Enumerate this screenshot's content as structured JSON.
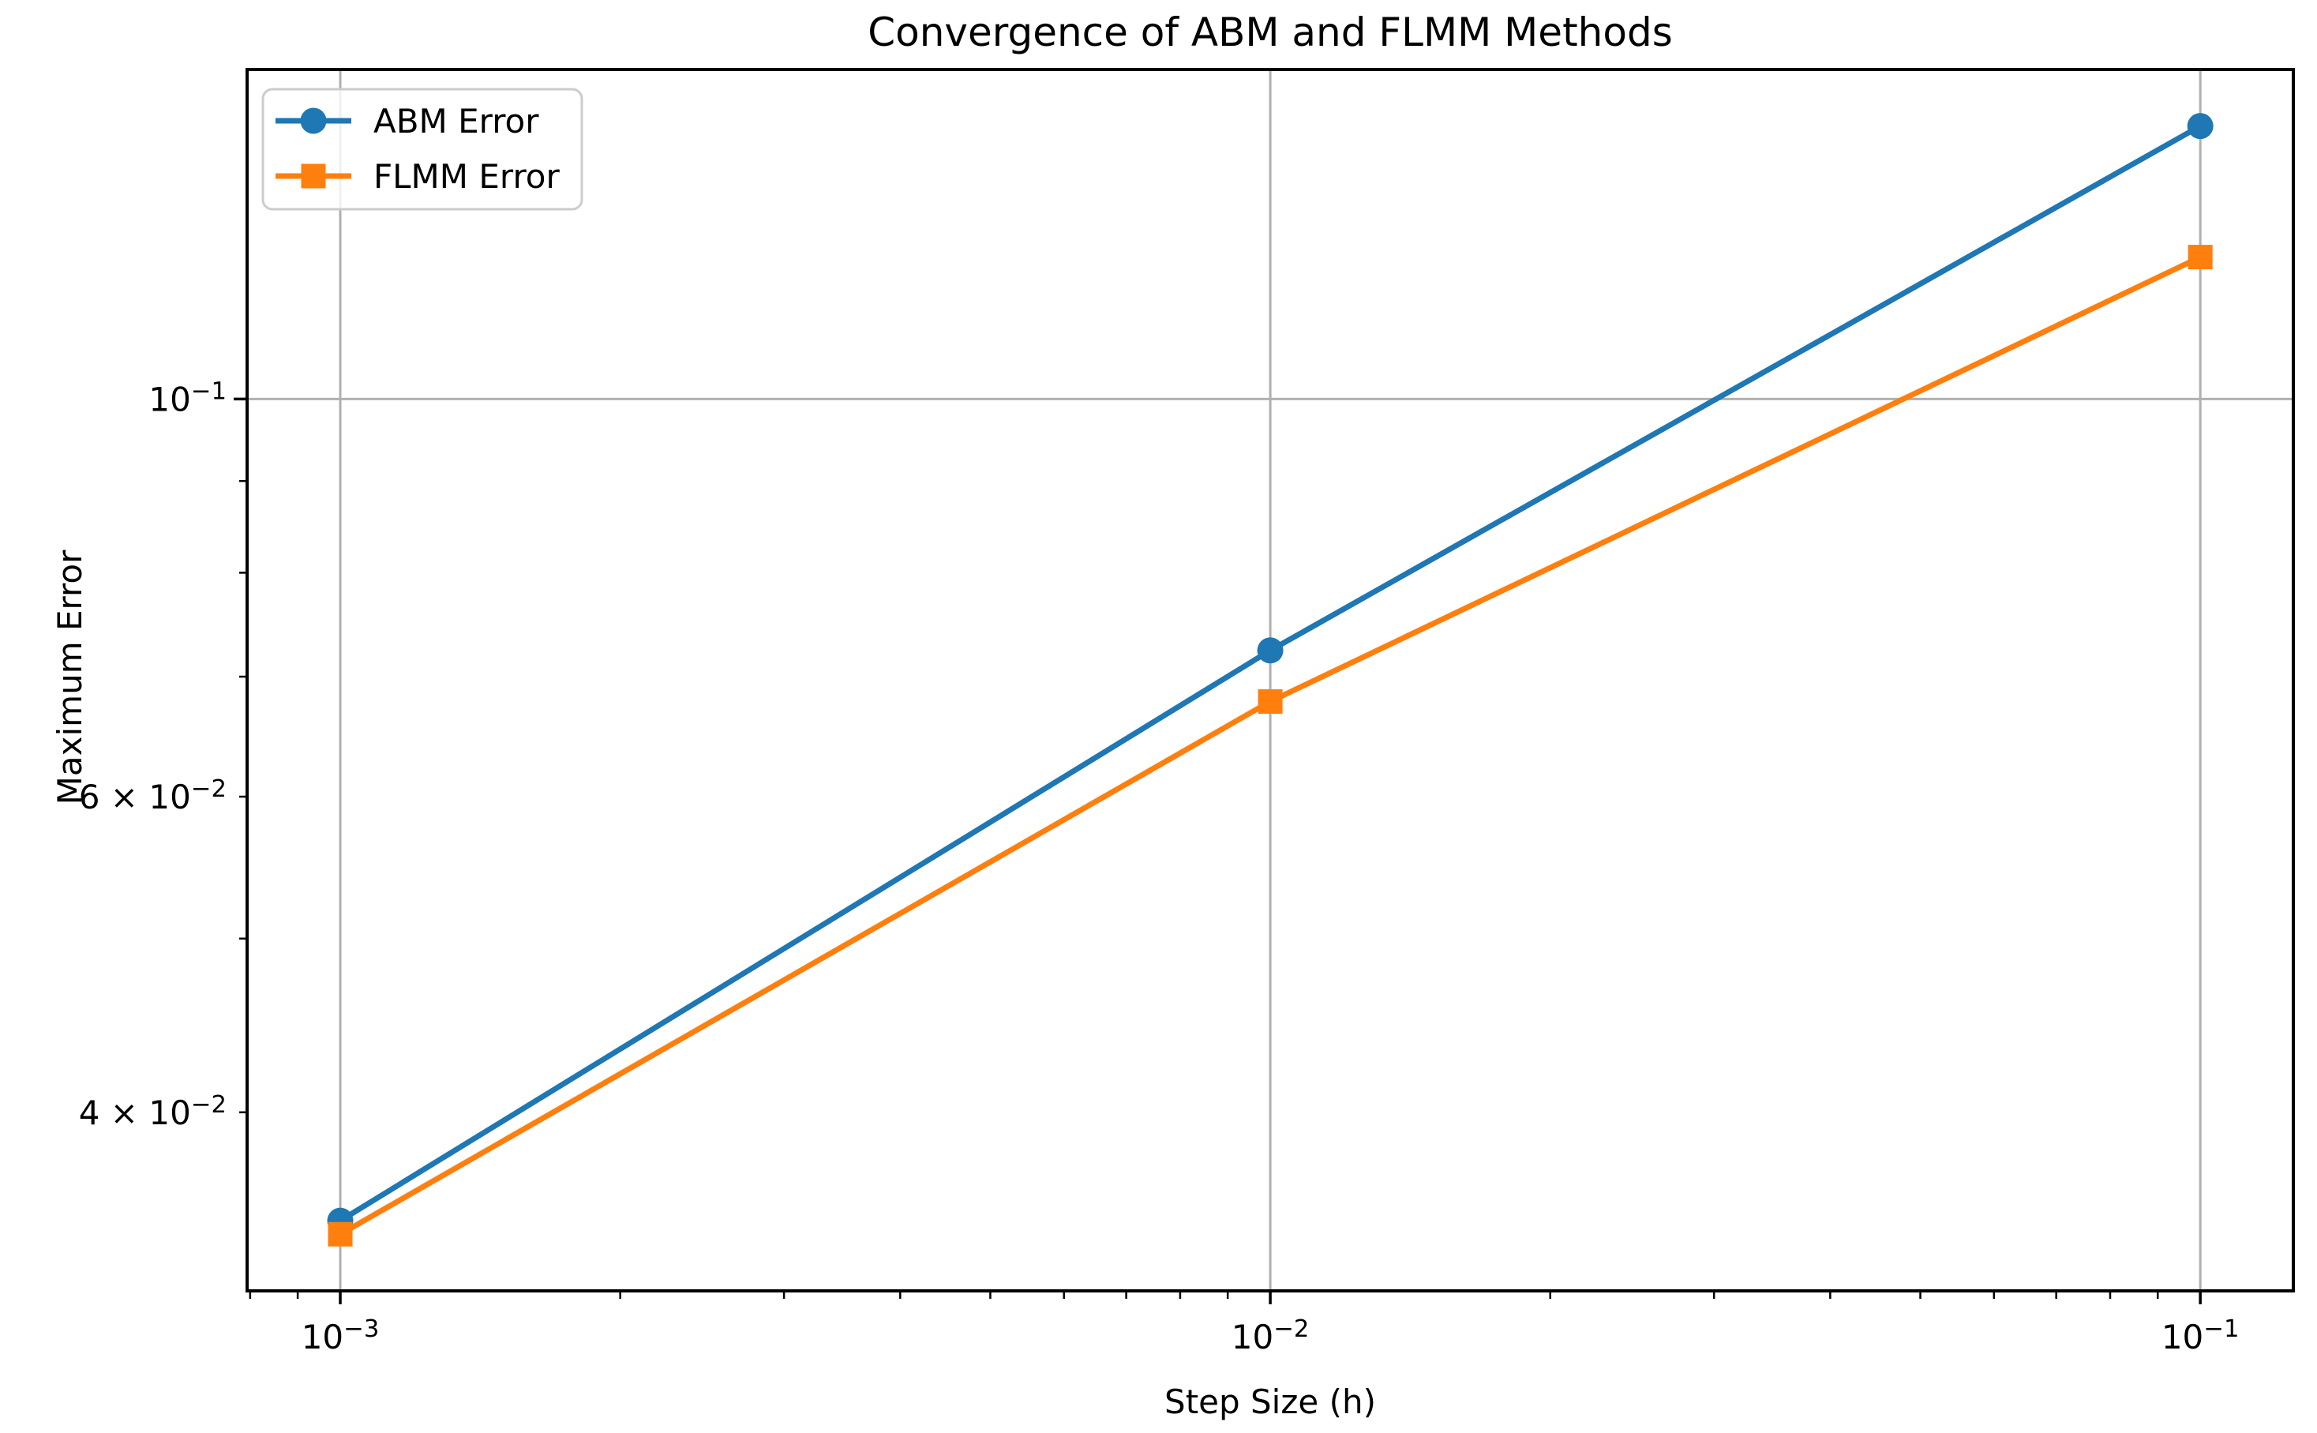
{
  "chart_data": {
    "type": "line",
    "title": "Convergence of ABM and FLMM Methods",
    "xlabel": "Step Size (h)",
    "ylabel": "Maximum Error",
    "x_scale": "log",
    "y_scale": "log",
    "x": [
      0.001,
      0.01,
      0.1
    ],
    "series": [
      {
        "name": "ABM Error",
        "color": "#1f77b4",
        "marker": "circle",
        "values": [
          0.0348,
          0.0724,
          0.142
        ]
      },
      {
        "name": "FLMM Error",
        "color": "#ff7f0e",
        "marker": "square",
        "values": [
          0.0342,
          0.0678,
          0.12
        ]
      }
    ],
    "xlim": [
      0.000794,
      0.1259
    ],
    "ylim": [
      0.0318,
      0.1527
    ],
    "x_ticks": {
      "major": [
        {
          "value": 0.001,
          "label": "10⁻³"
        },
        {
          "value": 0.01,
          "label": "10⁻²"
        },
        {
          "value": 0.1,
          "label": "10⁻¹"
        }
      ],
      "minor": [
        0.0008,
        0.0009,
        0.002,
        0.003,
        0.004,
        0.005,
        0.006,
        0.007,
        0.008,
        0.009,
        0.02,
        0.03,
        0.04,
        0.05,
        0.06,
        0.07,
        0.08,
        0.09
      ]
    },
    "y_ticks": {
      "major": [
        {
          "value": 0.1,
          "label": "10⁻¹"
        }
      ],
      "minor": [
        {
          "value": 0.04,
          "label": "4 × 10⁻²"
        },
        {
          "value": 0.05,
          "label": ""
        },
        {
          "value": 0.06,
          "label": "6 × 10⁻²"
        },
        {
          "value": 0.07,
          "label": ""
        },
        {
          "value": 0.08,
          "label": ""
        },
        {
          "value": 0.09,
          "label": ""
        }
      ]
    },
    "grid": "major",
    "legend": {
      "position": "upper left",
      "entries": [
        "ABM Error",
        "FLMM Error"
      ]
    },
    "colors": {
      "grid": "#b0b0b0",
      "spine": "#000000",
      "background": "#ffffff",
      "legend_border": "#cccccc"
    }
  }
}
